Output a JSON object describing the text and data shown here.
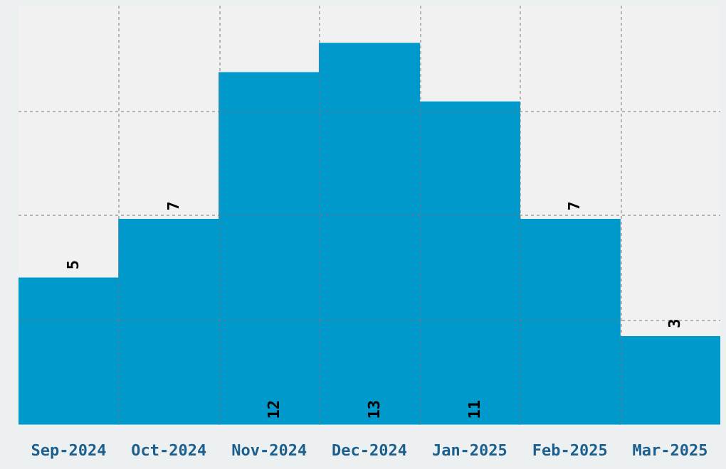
{
  "chart_data": {
    "type": "bar",
    "categories": [
      "Sep-2024",
      "Oct-2024",
      "Nov-2024",
      "Dec-2024",
      "Jan-2025",
      "Feb-2025",
      "Mar-2025"
    ],
    "values": [
      5,
      7,
      12,
      13,
      11,
      7,
      3
    ],
    "color": "#0099cc",
    "ylim": [
      0,
      14.28
    ],
    "grid": true,
    "data_labels": true,
    "tick_labels": "x"
  }
}
